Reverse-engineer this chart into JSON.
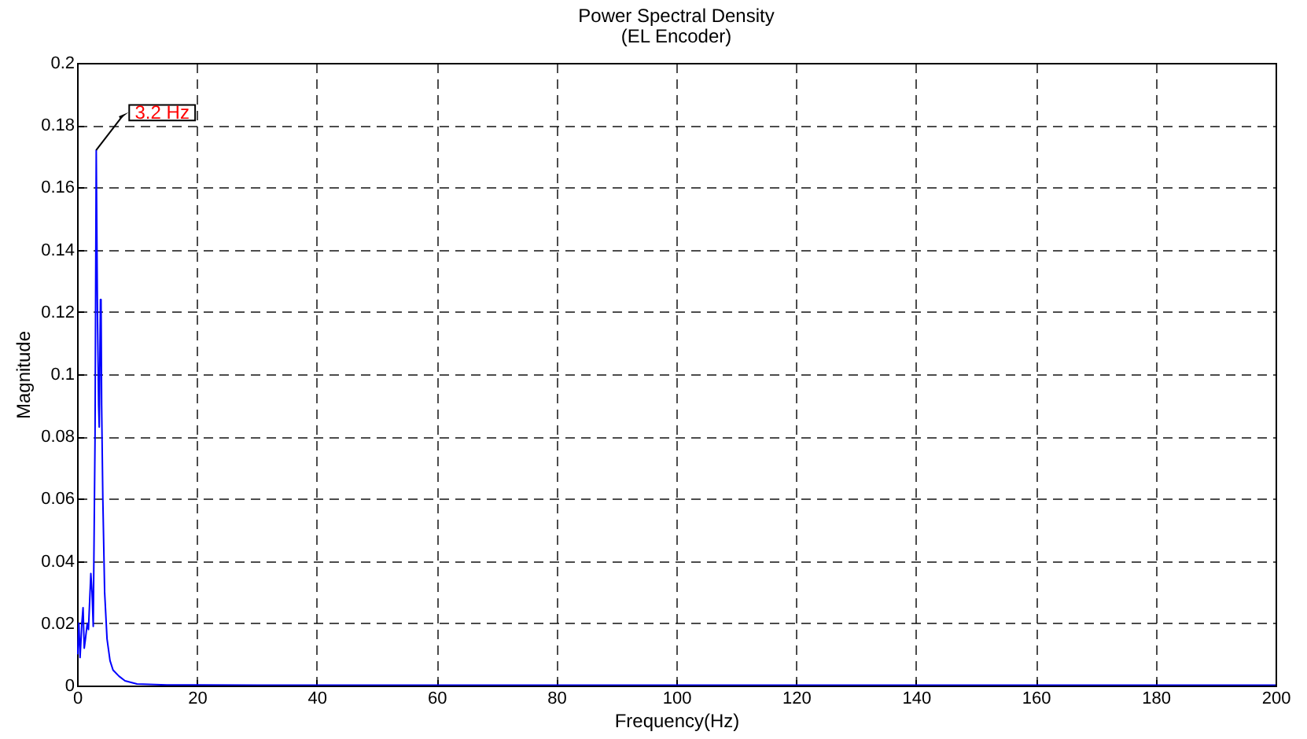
{
  "chart_data": {
    "type": "line",
    "title": "Power Spectral Density",
    "subtitle": "(EL Encoder)",
    "xlabel": "Frequency(Hz)",
    "ylabel": "Magnitude",
    "x": [
      0.1,
      0.3,
      0.5,
      0.8,
      1.0,
      1.2,
      1.4,
      1.7,
      1.9,
      2.3,
      2.5,
      2.7,
      3.0,
      3.2,
      3.4,
      3.6,
      3.7,
      3.9,
      4.0,
      4.1,
      4.3,
      4.6,
      5.0,
      5.5,
      6.0,
      7.0,
      8.0,
      9.0,
      10,
      15,
      30,
      60,
      100,
      150,
      200
    ],
    "series": [
      {
        "color": "#0000ff",
        "values": [
          0.01,
          0.02,
          0.009,
          0.02,
          0.025,
          0.012,
          0.015,
          0.02,
          0.018,
          0.036,
          0.03,
          0.019,
          0.08,
          0.172,
          0.12,
          0.09,
          0.083,
          0.124,
          0.124,
          0.09,
          0.06,
          0.03,
          0.015,
          0.008,
          0.005,
          0.003,
          0.0015,
          0.001,
          0.0005,
          0.0002,
          0.0001,
          0.0001,
          0.0001,
          0.0001,
          0.0001
        ]
      }
    ],
    "xlim": [
      0,
      200
    ],
    "xticks": [
      0,
      20,
      40,
      60,
      80,
      100,
      120,
      140,
      160,
      180,
      200
    ],
    "ylim": [
      0,
      0.2
    ],
    "yticks": [
      0,
      0.02,
      0.04,
      0.06,
      0.08,
      0.1,
      0.12,
      0.14,
      0.16,
      0.18,
      0.2
    ],
    "grid": true,
    "line_style": "solid",
    "marker": "none",
    "annotations": [
      {
        "text": "3.2 Hz",
        "x": 3.2,
        "y": 0.172
      }
    ]
  }
}
